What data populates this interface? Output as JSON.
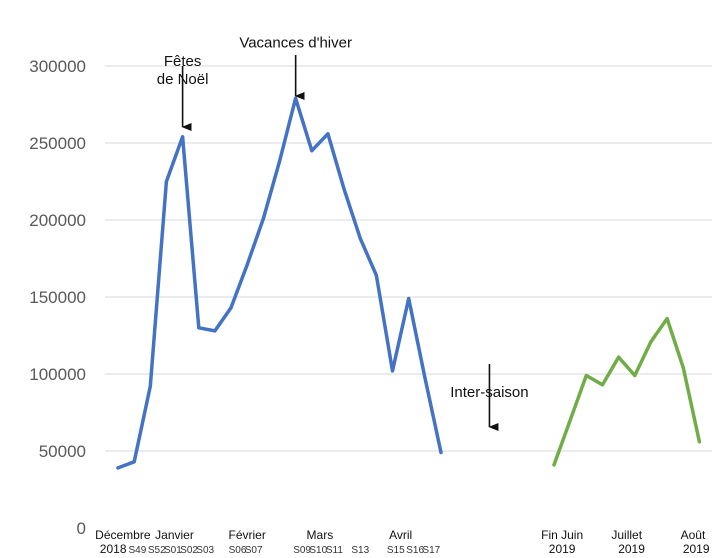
{
  "chart_data": {
    "type": "line",
    "title": "",
    "xlabel": "",
    "ylabel": "",
    "ylim": [
      0,
      300000
    ],
    "yticks": [
      0,
      50000,
      100000,
      150000,
      200000,
      250000,
      300000
    ],
    "ytick_labels": [
      "0",
      "50000",
      "100000",
      "150000",
      "200000",
      "250000",
      "300000"
    ],
    "grid": true,
    "legend": "none",
    "series": [
      {
        "color": "#4472C4",
        "points": [
          {
            "x": 0,
            "y": 39000
          },
          {
            "x": 1,
            "y": 43000
          },
          {
            "x": 2,
            "y": 92000
          },
          {
            "x": 3,
            "y": 225000
          },
          {
            "x": 4,
            "y": 254000
          },
          {
            "x": 5,
            "y": 130000
          },
          {
            "x": 6,
            "y": 128000
          },
          {
            "x": 7,
            "y": 143000
          },
          {
            "x": 8,
            "y": 171000
          },
          {
            "x": 9,
            "y": 201000
          },
          {
            "x": 10,
            "y": 238000
          },
          {
            "x": 11,
            "y": 279000
          },
          {
            "x": 12,
            "y": 245000
          },
          {
            "x": 13,
            "y": 256000
          },
          {
            "x": 14,
            "y": 220000
          },
          {
            "x": 15,
            "y": 188000
          },
          {
            "x": 16,
            "y": 164000
          },
          {
            "x": 17,
            "y": 102000
          },
          {
            "x": 18,
            "y": 149000
          },
          {
            "x": 19,
            "y": 98000
          },
          {
            "x": 20,
            "y": 49000
          }
        ]
      },
      {
        "color": "#70AD47",
        "points": [
          {
            "x": 27,
            "y": 41000
          },
          {
            "x": 28,
            "y": 70000
          },
          {
            "x": 29,
            "y": 99000
          },
          {
            "x": 30,
            "y": 93000
          },
          {
            "x": 31,
            "y": 111000
          },
          {
            "x": 32,
            "y": 99000
          },
          {
            "x": 33,
            "y": 121000
          },
          {
            "x": 34,
            "y": 136000
          },
          {
            "x": 35,
            "y": 104000
          },
          {
            "x": 36,
            "y": 56000
          }
        ]
      }
    ],
    "annotations": [
      {
        "text_lines": [
          "Fêtes",
          "de Noël"
        ],
        "x": 4,
        "text_y": 300000
      },
      {
        "text_lines": [
          "Vacances d'hiver"
        ],
        "x": 11,
        "text_y": 312000
      },
      {
        "text_lines": [
          "Inter-saison"
        ],
        "x": 23,
        "text_y": 85000
      }
    ],
    "x_month_labels": [
      {
        "text": "Décembre",
        "x": 0.3
      },
      {
        "text": "Janvier",
        "x": 3.5
      },
      {
        "text": "Février",
        "x": 8
      },
      {
        "text": "Mars",
        "x": 12.5
      },
      {
        "text": "Avril",
        "x": 17.5
      },
      {
        "text": "Fin Juin",
        "x": 27.5
      },
      {
        "text": "Juillet",
        "x": 31.5
      },
      {
        "text": "Août",
        "x": 35.6
      }
    ],
    "x_year_labels": [
      {
        "text": "2018",
        "x": -0.3
      },
      {
        "text": "2019",
        "x": 27.5
      },
      {
        "text": "2019",
        "x": 31.8
      },
      {
        "text": "2019",
        "x": 35.8
      }
    ],
    "x_week_labels": [
      {
        "text": "S49",
        "x": 1.2
      },
      {
        "text": "S52",
        "x": 2.4
      },
      {
        "text": "S01",
        "x": 3.4
      },
      {
        "text": "S02",
        "x": 4.4
      },
      {
        "text": "S03",
        "x": 5.4
      },
      {
        "text": "S06",
        "x": 7.4
      },
      {
        "text": "S07",
        "x": 8.4
      },
      {
        "text": "S09",
        "x": 11.4
      },
      {
        "text": "S10",
        "x": 12.4
      },
      {
        "text": "S11",
        "x": 13.4
      },
      {
        "text": "S13",
        "x": 15.0
      },
      {
        "text": "S15",
        "x": 17.2
      },
      {
        "text": "S16",
        "x": 18.4
      },
      {
        "text": "S17",
        "x": 19.4
      }
    ]
  }
}
